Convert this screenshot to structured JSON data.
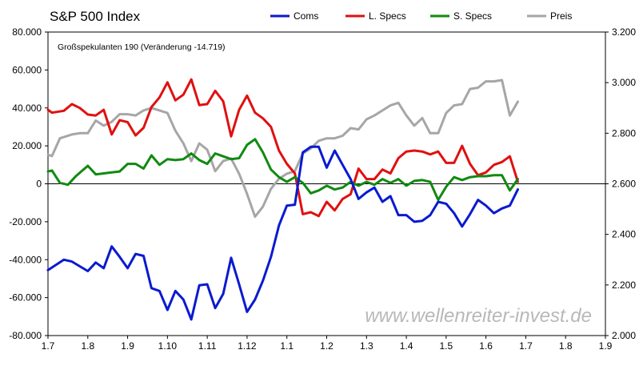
{
  "chart_data": {
    "type": "line",
    "title": "S&P 500 Index",
    "subtitle": "Großspekulanten 190 (Veränderung -14.719)",
    "watermark": "www.wellenreiter-invest.de",
    "legend_position": "top",
    "grid": false,
    "x_ticks": [
      "1.7",
      "1.8",
      "1.9",
      "1.10",
      "1.11",
      "1.12",
      "1.1",
      "1.2",
      "1.3",
      "1.4",
      "1.5",
      "1.6",
      "1.7",
      "1.8",
      "1.9"
    ],
    "y_left": {
      "ylim": [
        -80000,
        80000
      ],
      "ticks": [
        -80000,
        -60000,
        -40000,
        -20000,
        0,
        20000,
        40000,
        60000,
        80000
      ],
      "tick_labels": [
        "-80.000",
        "-60.000",
        "-40.000",
        "-20.000",
        "0",
        "20.000",
        "40.000",
        "60.000",
        "80.000"
      ]
    },
    "y_right": {
      "ylim": [
        2000,
        3200
      ],
      "ticks": [
        2000,
        2200,
        2400,
        2600,
        2800,
        3000,
        3200
      ],
      "tick_labels": [
        "2.000",
        "2.200",
        "2.400",
        "2.600",
        "2.800",
        "3.000",
        "3.200"
      ]
    },
    "series": [
      {
        "name": "Coms",
        "axis": "left",
        "color": "#0a1ad0",
        "points": [
          [
            0,
            -45.5
          ],
          [
            0.4,
            -40.0
          ],
          [
            0.6,
            -41.0
          ],
          [
            1.0,
            -46.0
          ],
          [
            1.2,
            -41.5
          ],
          [
            1.4,
            -44.5
          ],
          [
            1.6,
            -33.0
          ],
          [
            1.8,
            -38.5
          ],
          [
            2.0,
            -44.5
          ],
          [
            2.2,
            -37.0
          ],
          [
            2.4,
            -38.0
          ],
          [
            2.6,
            -55.0
          ],
          [
            2.8,
            -56.5
          ],
          [
            3.0,
            -66.5
          ],
          [
            3.2,
            -56.5
          ],
          [
            3.4,
            -61.0
          ],
          [
            3.6,
            -71.5
          ],
          [
            3.8,
            -53.5
          ],
          [
            4.0,
            -53.0
          ],
          [
            4.2,
            -65.5
          ],
          [
            4.4,
            -58.0
          ],
          [
            4.6,
            -39.0
          ],
          [
            4.8,
            -53.0
          ],
          [
            5.0,
            -67.5
          ],
          [
            5.2,
            -61.0
          ],
          [
            5.4,
            -51.0
          ],
          [
            5.6,
            -38.5
          ],
          [
            5.8,
            -22.0
          ],
          [
            6.0,
            -11.5
          ],
          [
            6.2,
            -11.0
          ],
          [
            6.4,
            16.5
          ],
          [
            6.6,
            19.5
          ],
          [
            6.8,
            19.5
          ],
          [
            7.0,
            8.5
          ],
          [
            7.2,
            17.5
          ],
          [
            7.4,
            10.0
          ],
          [
            7.6,
            2.5
          ],
          [
            7.8,
            -8.0
          ],
          [
            8.0,
            -4.5
          ],
          [
            8.2,
            -2.0
          ],
          [
            8.4,
            -9.5
          ],
          [
            8.6,
            -6.5
          ],
          [
            8.8,
            -16.5
          ],
          [
            9.0,
            -16.5
          ],
          [
            9.2,
            -20.0
          ],
          [
            9.4,
            -19.5
          ],
          [
            9.6,
            -16.5
          ],
          [
            9.8,
            -9.5
          ],
          [
            10.0,
            -10.5
          ],
          [
            10.2,
            -15.5
          ],
          [
            10.4,
            -22.5
          ],
          [
            10.6,
            -16.0
          ],
          [
            10.8,
            -8.5
          ],
          [
            11.0,
            -11.5
          ],
          [
            11.2,
            -15.5
          ],
          [
            11.4,
            -13.0
          ],
          [
            11.6,
            -11.5
          ],
          [
            11.8,
            -3.0
          ]
        ]
      },
      {
        "name": "L. Specs",
        "axis": "left",
        "color": "#e01010",
        "points": [
          [
            0,
            39.0
          ],
          [
            0.1,
            37.5
          ],
          [
            0.4,
            38.5
          ],
          [
            0.6,
            42.0
          ],
          [
            0.8,
            40.0
          ],
          [
            1.0,
            36.5
          ],
          [
            1.2,
            36.0
          ],
          [
            1.4,
            39.0
          ],
          [
            1.6,
            26.0
          ],
          [
            1.8,
            33.5
          ],
          [
            2.0,
            32.5
          ],
          [
            2.2,
            25.5
          ],
          [
            2.4,
            29.5
          ],
          [
            2.6,
            40.5
          ],
          [
            2.8,
            45.5
          ],
          [
            3.0,
            53.5
          ],
          [
            3.2,
            44.0
          ],
          [
            3.4,
            47.0
          ],
          [
            3.6,
            55.0
          ],
          [
            3.8,
            41.5
          ],
          [
            4.0,
            42.0
          ],
          [
            4.2,
            49.0
          ],
          [
            4.4,
            43.5
          ],
          [
            4.6,
            25.0
          ],
          [
            4.8,
            39.0
          ],
          [
            5.0,
            46.5
          ],
          [
            5.2,
            37.5
          ],
          [
            5.4,
            34.5
          ],
          [
            5.6,
            30.0
          ],
          [
            5.8,
            17.5
          ],
          [
            6.0,
            10.5
          ],
          [
            6.2,
            5.5
          ],
          [
            6.4,
            -16.0
          ],
          [
            6.6,
            -15.0
          ],
          [
            6.8,
            -17.0
          ],
          [
            7.0,
            -9.5
          ],
          [
            7.2,
            -14.0
          ],
          [
            7.4,
            -8.0
          ],
          [
            7.6,
            -5.5
          ],
          [
            7.8,
            8.0
          ],
          [
            8.0,
            2.5
          ],
          [
            8.2,
            2.5
          ],
          [
            8.4,
            7.5
          ],
          [
            8.6,
            5.5
          ],
          [
            8.8,
            13.5
          ],
          [
            9.0,
            17.0
          ],
          [
            9.2,
            17.5
          ],
          [
            9.4,
            17.0
          ],
          [
            9.6,
            15.5
          ],
          [
            9.8,
            17.0
          ],
          [
            10.0,
            11.0
          ],
          [
            10.2,
            11.0
          ],
          [
            10.4,
            20.0
          ],
          [
            10.6,
            10.5
          ],
          [
            10.8,
            4.5
          ],
          [
            11.0,
            6.0
          ],
          [
            11.2,
            10.0
          ],
          [
            11.4,
            11.5
          ],
          [
            11.6,
            14.5
          ],
          [
            11.8,
            1.0
          ]
        ]
      },
      {
        "name": "S. Specs",
        "axis": "left",
        "color": "#108a10",
        "points": [
          [
            0,
            6.5
          ],
          [
            0.1,
            7.0
          ],
          [
            0.3,
            0.5
          ],
          [
            0.5,
            -0.5
          ],
          [
            0.7,
            4.0
          ],
          [
            1.0,
            9.5
          ],
          [
            1.2,
            5.0
          ],
          [
            1.4,
            5.5
          ],
          [
            1.6,
            6.0
          ],
          [
            1.8,
            6.5
          ],
          [
            2.0,
            10.5
          ],
          [
            2.2,
            10.5
          ],
          [
            2.4,
            8.0
          ],
          [
            2.6,
            15.0
          ],
          [
            2.8,
            10.0
          ],
          [
            3.0,
            13.0
          ],
          [
            3.2,
            12.5
          ],
          [
            3.4,
            13.0
          ],
          [
            3.6,
            16.0
          ],
          [
            3.8,
            12.5
          ],
          [
            4.0,
            10.5
          ],
          [
            4.2,
            16.0
          ],
          [
            4.4,
            14.5
          ],
          [
            4.6,
            13.0
          ],
          [
            4.8,
            13.5
          ],
          [
            5.0,
            20.5
          ],
          [
            5.2,
            23.5
          ],
          [
            5.4,
            16.5
          ],
          [
            5.6,
            7.5
          ],
          [
            5.8,
            3.5
          ],
          [
            6.0,
            1.0
          ],
          [
            6.2,
            3.5
          ],
          [
            6.4,
            0.5
          ],
          [
            6.6,
            -5.0
          ],
          [
            6.8,
            -3.5
          ],
          [
            7.0,
            -1.0
          ],
          [
            7.2,
            -3.0
          ],
          [
            7.4,
            -2.0
          ],
          [
            7.6,
            1.0
          ],
          [
            7.8,
            -1.0
          ],
          [
            8.0,
            1.0
          ],
          [
            8.2,
            -0.5
          ],
          [
            8.4,
            2.5
          ],
          [
            8.6,
            0.5
          ],
          [
            8.8,
            2.5
          ],
          [
            9.0,
            -1.0
          ],
          [
            9.2,
            1.5
          ],
          [
            9.4,
            2.0
          ],
          [
            9.6,
            1.0
          ],
          [
            9.8,
            -8.5
          ],
          [
            10.0,
            -1.5
          ],
          [
            10.2,
            3.5
          ],
          [
            10.4,
            2.0
          ],
          [
            10.6,
            3.5
          ],
          [
            10.8,
            4.0
          ],
          [
            11.0,
            4.0
          ],
          [
            11.2,
            4.5
          ],
          [
            11.4,
            4.5
          ],
          [
            11.6,
            -3.5
          ],
          [
            11.8,
            2.5
          ]
        ]
      },
      {
        "name": "Preis",
        "axis": "right",
        "color": "#a6a6a6",
        "points": [
          [
            0,
            2715
          ],
          [
            0.1,
            2710
          ],
          [
            0.3,
            2780
          ],
          [
            0.6,
            2795
          ],
          [
            0.8,
            2800
          ],
          [
            1.0,
            2800
          ],
          [
            1.2,
            2850
          ],
          [
            1.4,
            2830
          ],
          [
            1.6,
            2845
          ],
          [
            1.8,
            2875
          ],
          [
            2.0,
            2875
          ],
          [
            2.2,
            2870
          ],
          [
            2.4,
            2890
          ],
          [
            2.6,
            2900
          ],
          [
            2.8,
            2890
          ],
          [
            3.0,
            2880
          ],
          [
            3.2,
            2810
          ],
          [
            3.4,
            2760
          ],
          [
            3.6,
            2690
          ],
          [
            3.8,
            2760
          ],
          [
            4.0,
            2735
          ],
          [
            4.2,
            2650
          ],
          [
            4.4,
            2690
          ],
          [
            4.6,
            2700
          ],
          [
            4.8,
            2640
          ],
          [
            5.0,
            2560
          ],
          [
            5.2,
            2470
          ],
          [
            5.4,
            2510
          ],
          [
            5.6,
            2580
          ],
          [
            5.8,
            2620
          ],
          [
            6.0,
            2640
          ],
          [
            6.2,
            2650
          ],
          [
            6.4,
            2720
          ],
          [
            6.6,
            2740
          ],
          [
            6.8,
            2770
          ],
          [
            7.0,
            2780
          ],
          [
            7.2,
            2780
          ],
          [
            7.4,
            2790
          ],
          [
            7.6,
            2820
          ],
          [
            7.8,
            2815
          ],
          [
            8.0,
            2855
          ],
          [
            8.2,
            2870
          ],
          [
            8.4,
            2890
          ],
          [
            8.6,
            2910
          ],
          [
            8.8,
            2920
          ],
          [
            9.0,
            2870
          ],
          [
            9.2,
            2830
          ],
          [
            9.4,
            2860
          ],
          [
            9.6,
            2800
          ],
          [
            9.8,
            2800
          ],
          [
            10.0,
            2880
          ],
          [
            10.2,
            2910
          ],
          [
            10.4,
            2915
          ],
          [
            10.6,
            2975
          ],
          [
            10.8,
            2980
          ],
          [
            11.0,
            3005
          ],
          [
            11.2,
            3005
          ],
          [
            11.4,
            3010
          ],
          [
            11.6,
            2870
          ],
          [
            11.8,
            2925
          ]
        ]
      }
    ]
  }
}
